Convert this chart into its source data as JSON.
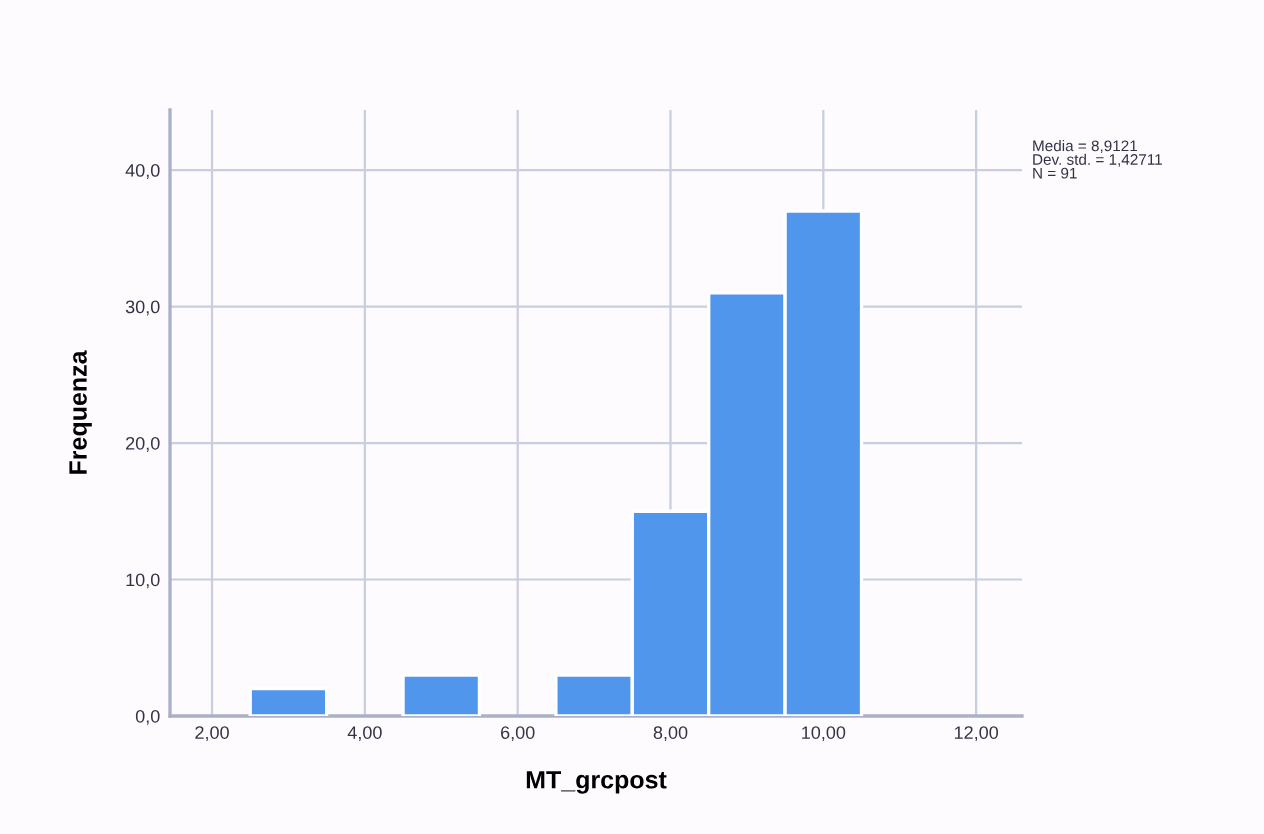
{
  "chart_data": {
    "type": "histogram",
    "xlabel": "MT_grcpost",
    "ylabel": "Frequenza",
    "bins": [
      2.5,
      3.5,
      4.5,
      5.5,
      6.5,
      7.5,
      8.5,
      9.5,
      10.5
    ],
    "values": [
      2,
      0,
      3,
      0,
      3,
      15,
      31,
      37
    ],
    "color": "#5096ec",
    "xlim": [
      1.45,
      12.6
    ],
    "ylim": [
      0,
      44.4
    ],
    "xticks": [
      {
        "value": 2,
        "label": "2,00"
      },
      {
        "value": 4,
        "label": "4,00"
      },
      {
        "value": 6,
        "label": "6,00"
      },
      {
        "value": 8,
        "label": "8,00"
      },
      {
        "value": 10,
        "label": "10,00"
      },
      {
        "value": 12,
        "label": "12,00"
      }
    ],
    "yticks": [
      {
        "value": 0,
        "label": "0,0"
      },
      {
        "value": 10,
        "label": "10,0"
      },
      {
        "value": 20,
        "label": "20,0"
      },
      {
        "value": 30,
        "label": "30,0"
      },
      {
        "value": 40,
        "label": "40,0"
      }
    ],
    "grid": true,
    "annotations": [
      "Media = 8,9121\nDev. std. = 1,42711\nN = 91"
    ]
  }
}
